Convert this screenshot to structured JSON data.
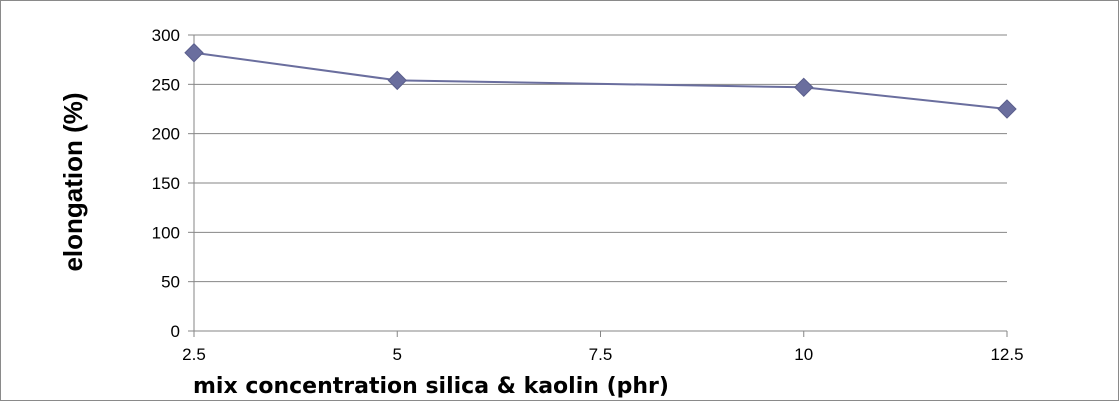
{
  "chart_data": {
    "type": "line",
    "x": [
      2.5,
      5,
      10,
      12.5
    ],
    "series": [
      {
        "values": [
          282,
          254,
          247,
          225
        ]
      }
    ],
    "xticks": [
      "2.5",
      "5",
      "7.5",
      "10",
      "12.5"
    ],
    "yticks": [
      "0",
      "50",
      "100",
      "150",
      "200",
      "250",
      "300"
    ],
    "xlim": [
      2.5,
      12.5
    ],
    "ylim": [
      0,
      300
    ],
    "xlabel": "mix concentration silica & kaolin (phr)",
    "ylabel": "elongation (%)",
    "grid": "horizontal",
    "marker": "diamond",
    "legend": "none",
    "colors": {
      "line": "#6a6e9e",
      "marker": "#6a6e9e",
      "grid": "#868686",
      "axis": "#868686"
    }
  }
}
